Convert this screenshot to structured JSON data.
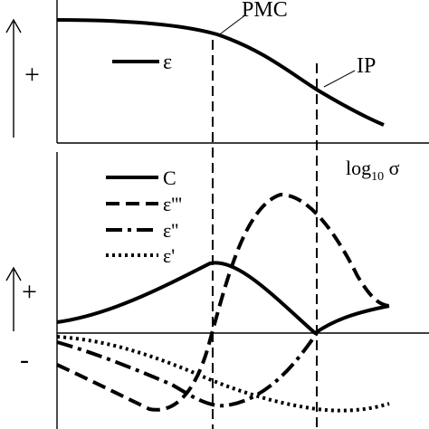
{
  "labels": {
    "pmc": "PMC",
    "ip": "IP",
    "x_axis_base": "log",
    "x_axis_sub": "10",
    "x_axis_sym": " σ",
    "plus_top": "+",
    "plus_bottom": "+",
    "minus_bottom": "-"
  },
  "legend_top": [
    {
      "symbol": "ε",
      "style": "solid"
    }
  ],
  "legend_bottom": [
    {
      "symbol": "C",
      "style": "solid"
    },
    {
      "symbol": "ε'''",
      "style": "dashed"
    },
    {
      "symbol": "ε''",
      "style": "dashdot"
    },
    {
      "symbol": "ε'",
      "style": "dotted"
    }
  ]
}
